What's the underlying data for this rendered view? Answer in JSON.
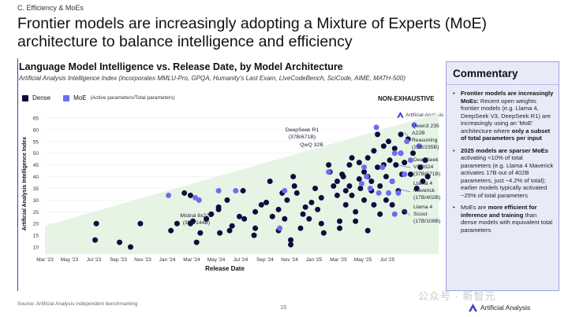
{
  "section": "C. Efficiency & MoEs",
  "headline": "Frontier models are increasingly adopting a Mixture of Experts (MoE) architecture to balance intelligence and efficiency",
  "chart": {
    "title": "Language Model Intelligence vs. Release Date, by Model Architecture",
    "subtitle": "Artificial Analysis Intelligence Index (incorporates MMLU-Pro, GPQA, Humanity's Last Exam, LiveCodeBench, SciCode, AIME, MATH-500)",
    "legend": {
      "dense": "Dense",
      "moe": "MoE",
      "moe_note": "(Active parameters/Total parameters)"
    },
    "non_exhaustive": "NON-EXHAUSTIVE",
    "watermark": "Artificial Analysis"
  },
  "colors": {
    "dense": "#0d0d3d",
    "moe": "#6b6ef0",
    "accent": "#3b3bc8",
    "region": "#e6f4e4"
  },
  "chart_data": {
    "type": "scatter",
    "xlabel": "Release Date",
    "ylabel": "Artificial Analysis Intelligence Index",
    "x_ticks": [
      "Mar '23",
      "May '23",
      "Jul '23",
      "Sep '23",
      "Nov '23",
      "Jan '24",
      "Mar '24",
      "May '24",
      "Jul '24",
      "Sep '24",
      "Nov '24",
      "Jan '25",
      "Mar '25",
      "May '25",
      "Jul '25"
    ],
    "y_ticks": [
      10,
      15,
      20,
      25,
      30,
      35,
      40,
      45,
      50,
      55,
      60,
      65
    ],
    "ylim": [
      7,
      67
    ],
    "x_unit": "months since Mar 2023",
    "series": [
      {
        "name": "Dense",
        "points": [
          [
            4.2,
            20
          ],
          [
            4.1,
            13
          ],
          [
            6.1,
            12
          ],
          [
            7.0,
            10
          ],
          [
            7.8,
            20
          ],
          [
            10.3,
            17
          ],
          [
            10.8,
            20
          ],
          [
            11.4,
            33
          ],
          [
            11.9,
            32
          ],
          [
            11.9,
            20
          ],
          [
            12.1,
            21
          ],
          [
            12.4,
            12
          ],
          [
            12.7,
            16
          ],
          [
            13.2,
            22
          ],
          [
            13.6,
            24
          ],
          [
            14.2,
            27
          ],
          [
            14.2,
            26
          ],
          [
            14.3,
            16
          ],
          [
            14.9,
            30
          ],
          [
            15.1,
            17
          ],
          [
            15.3,
            19
          ],
          [
            15.9,
            23
          ],
          [
            16.2,
            34
          ],
          [
            16.3,
            22
          ],
          [
            17.1,
            15
          ],
          [
            17.2,
            25
          ],
          [
            17.2,
            18
          ],
          [
            17.7,
            28
          ],
          [
            18.1,
            29
          ],
          [
            18.4,
            38
          ],
          [
            18.6,
            23
          ],
          [
            19.1,
            26
          ],
          [
            19.1,
            17
          ],
          [
            19.4,
            33
          ],
          [
            19.6,
            22
          ],
          [
            19.8,
            30
          ],
          [
            20.1,
            11
          ],
          [
            20.1,
            13
          ],
          [
            20.3,
            40
          ],
          [
            20.4,
            36
          ],
          [
            20.6,
            33
          ],
          [
            20.9,
            18
          ],
          [
            21.1,
            24
          ],
          [
            21.3,
            27
          ],
          [
            21.6,
            22
          ],
          [
            21.8,
            29
          ],
          [
            22.1,
            35
          ],
          [
            22.3,
            26
          ],
          [
            22.6,
            31
          ],
          [
            22.6,
            20
          ],
          [
            22.8,
            16
          ],
          [
            23.2,
            45
          ],
          [
            23.3,
            42
          ],
          [
            23.6,
            36
          ],
          [
            23.9,
            38
          ],
          [
            23.9,
            32
          ],
          [
            24.1,
            21
          ],
          [
            24.1,
            18
          ],
          [
            24.3,
            41
          ],
          [
            24.4,
            40
          ],
          [
            24.6,
            34
          ],
          [
            24.6,
            28
          ],
          [
            24.9,
            45
          ],
          [
            24.9,
            36
          ],
          [
            25.1,
            48
          ],
          [
            25.1,
            32
          ],
          [
            25.4,
            25
          ],
          [
            25.4,
            21
          ],
          [
            25.7,
            46
          ],
          [
            25.7,
            39
          ],
          [
            25.8,
            35
          ],
          [
            26.1,
            42
          ],
          [
            26.1,
            30
          ],
          [
            26.4,
            48
          ],
          [
            26.4,
            40
          ],
          [
            26.4,
            17
          ],
          [
            26.7,
            38
          ],
          [
            26.7,
            34
          ],
          [
            26.9,
            51
          ],
          [
            26.9,
            28
          ],
          [
            27.2,
            58
          ],
          [
            27.2,
            44
          ],
          [
            27.4,
            36
          ],
          [
            27.4,
            24
          ],
          [
            27.7,
            53
          ],
          [
            27.7,
            45
          ],
          [
            27.9,
            40
          ],
          [
            27.9,
            30
          ],
          [
            28.1,
            55
          ],
          [
            28.2,
            47
          ],
          [
            28.4,
            38
          ],
          [
            28.4,
            28
          ],
          [
            28.6,
            52
          ],
          [
            28.7,
            45
          ],
          [
            28.9,
            34
          ],
          [
            29.1,
            58
          ],
          [
            29.1,
            50
          ],
          [
            29.2,
            41
          ],
          [
            29.4,
            46
          ],
          [
            29.4,
            25
          ],
          [
            29.7,
            56
          ],
          [
            29.9,
            41
          ],
          [
            30.1,
            50
          ],
          [
            30.4,
            35
          ],
          [
            30.7,
            44
          ],
          [
            30.9,
            38
          ],
          [
            31.1,
            47
          ],
          [
            31.3,
            40
          ]
        ]
      },
      {
        "name": "MoE",
        "points": [
          [
            10.1,
            32
          ],
          [
            12.3,
            31
          ],
          [
            12.6,
            30
          ],
          [
            14.2,
            34
          ],
          [
            15.6,
            34
          ],
          [
            19.2,
            18
          ],
          [
            19.6,
            34
          ],
          [
            23.2,
            42
          ],
          [
            25.9,
            37
          ],
          [
            26.1,
            44
          ],
          [
            26.3,
            40
          ],
          [
            26.6,
            35
          ],
          [
            27.1,
            61
          ],
          [
            27.3,
            33
          ],
          [
            27.6,
            44
          ],
          [
            28.1,
            33
          ],
          [
            28.4,
            38
          ],
          [
            28.6,
            50
          ],
          [
            28.6,
            24
          ],
          [
            28.9,
            33
          ],
          [
            29.1,
            50
          ],
          [
            29.4,
            41
          ],
          [
            29.6,
            55
          ],
          [
            29.9,
            47
          ],
          [
            30.2,
            62
          ],
          [
            30.6,
            53
          ]
        ]
      }
    ],
    "annotations": [
      {
        "model": "DeepSeek R1",
        "params": "(37B/671B)"
      },
      {
        "model": "QwQ 32B",
        "params": ""
      },
      {
        "model": "Qwen3 235 A22B Reasoning",
        "params": "(22B/235B)"
      },
      {
        "model": "DeepSeek V3 0324",
        "params": "(37B/671B)"
      },
      {
        "model": "Llama 4 Maverick",
        "params": "(17B/402B)"
      },
      {
        "model": "Llama 4 Scout",
        "params": "(17B/109B)"
      },
      {
        "model": "Mistral 8x22B",
        "params": "(39B/144B)"
      }
    ]
  },
  "commentary": {
    "title": "Commentary",
    "items": [
      {
        "bold": "Frontier models are increasingly MoEs:",
        "text": " Recent open weights frontier models (e.g. Llama 4, DeepSeek V3, DeepSeek R1) are increasingly using an 'MoE' architecture where ",
        "bold2": "only a subset of total parameters per input",
        "tail": ""
      },
      {
        "bold": "2025 models are sparser MoEs",
        "text": " activating <10% of total parameters (e.g. Llama 4 Maverick activates 17B out of 402B parameters, just ~4.2% of total); earlier models typically activated ~25% of total parameters",
        "bold2": "",
        "tail": ""
      },
      {
        "bold": "",
        "text": "MoEs are ",
        "bold2": "more efficient for inference and training",
        "tail": " than dense models with equivalent total parameters"
      }
    ]
  },
  "footer": {
    "source": "Source: Artificial Analysis independent benchmarking",
    "page": "15",
    "brand": "Artificial Analysis",
    "social_watermark": "公众号 · 新智元"
  }
}
